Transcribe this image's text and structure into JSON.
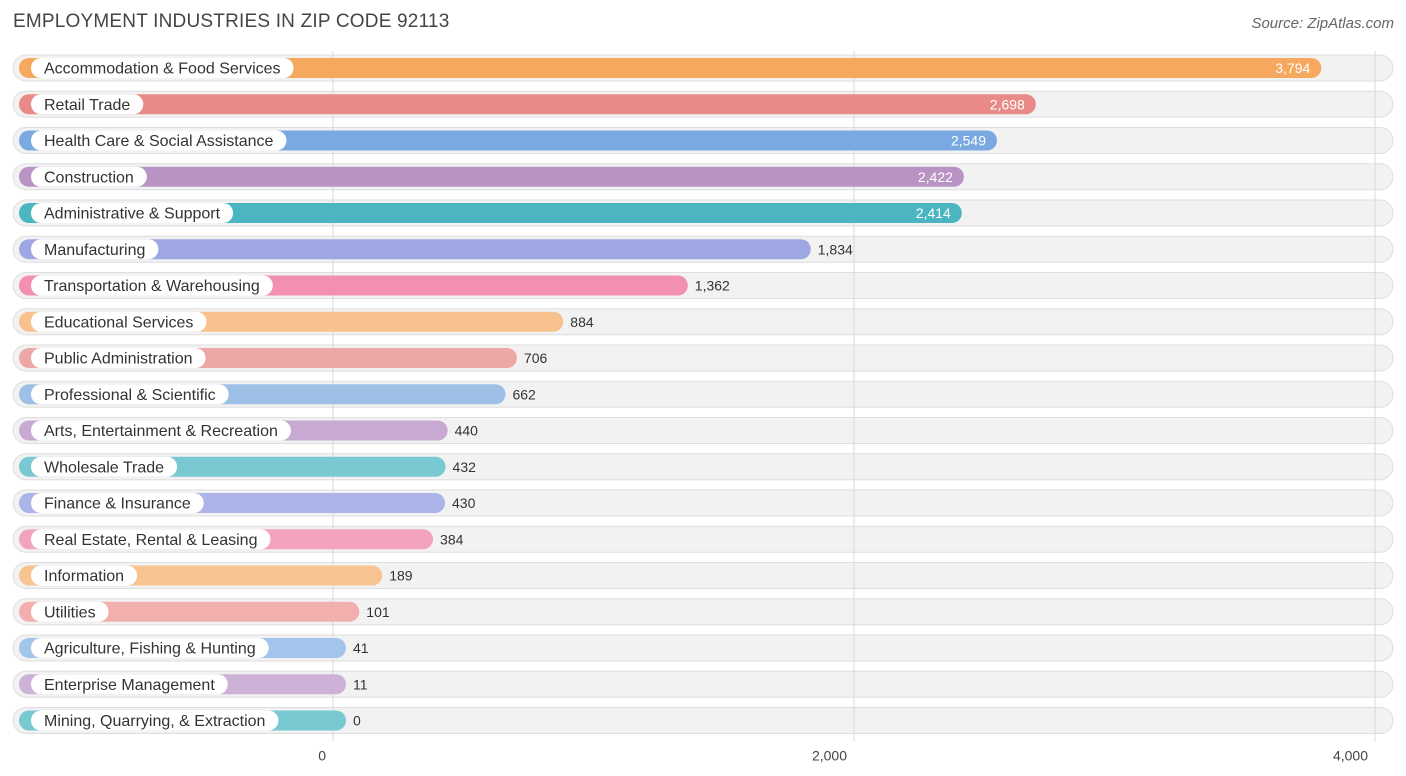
{
  "title": "EMPLOYMENT INDUSTRIES IN ZIP CODE 92113",
  "source": "Source: ZipAtlas.com",
  "chart_data": {
    "type": "bar",
    "orientation": "horizontal",
    "title": "EMPLOYMENT INDUSTRIES IN ZIP CODE 92113",
    "xlabel": "",
    "ylabel": "",
    "xlim": [
      0,
      4000
    ],
    "xticks": [
      0,
      2000,
      4000
    ],
    "xtick_labels": [
      "0",
      "2,000",
      "4,000"
    ],
    "grid": true,
    "categories": [
      "Accommodation & Food Services",
      "Retail Trade",
      "Health Care & Social Assistance",
      "Construction",
      "Administrative & Support",
      "Manufacturing",
      "Transportation & Warehousing",
      "Educational Services",
      "Public Administration",
      "Professional & Scientific",
      "Arts, Entertainment & Recreation",
      "Wholesale Trade",
      "Finance & Insurance",
      "Real Estate, Rental & Leasing",
      "Information",
      "Utilities",
      "Agriculture, Fishing & Hunting",
      "Enterprise Management",
      "Mining, Quarrying, & Extraction"
    ],
    "values": [
      3794,
      2698,
      2549,
      2422,
      2414,
      1834,
      1362,
      884,
      706,
      662,
      440,
      432,
      430,
      384,
      189,
      101,
      41,
      11,
      0
    ],
    "value_labels": [
      "3,794",
      "2,698",
      "2,549",
      "2,422",
      "2,414",
      "1,834",
      "1,362",
      "884",
      "706",
      "662",
      "440",
      "432",
      "430",
      "384",
      "189",
      "101",
      "41",
      "11",
      "0"
    ],
    "colors": [
      "#f5a85e",
      "#e88a87",
      "#79a9e0",
      "#b993c3",
      "#4bb6c2",
      "#9ea7e3",
      "#f38fb1",
      "#f8c28f",
      "#eca7a6",
      "#9ebfe6",
      "#c7a9d1",
      "#78c9d1",
      "#adb4e8",
      "#f4a3bf",
      "#f8c592",
      "#f2afae",
      "#a4c5eb",
      "#cdb1d7",
      "#78c9d1"
    ]
  }
}
